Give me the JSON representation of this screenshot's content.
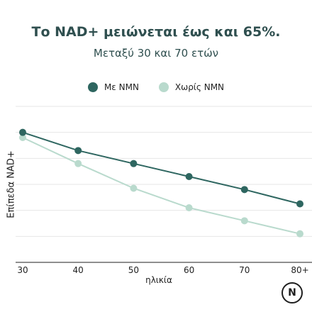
{
  "chart_data": {
    "type": "line",
    "title": "Το NAD+ μειώνεται έως και 65%.",
    "subtitle": "Μεταξύ 30 και 70 ετών",
    "xlabel": "ηλικία",
    "ylabel": "Επίπεδα NAD+",
    "categories": [
      "30",
      "40",
      "50",
      "60",
      "70",
      "80+"
    ],
    "series": [
      {
        "name": "Με NMN",
        "color": "#2e6660",
        "values": [
          100,
          86,
          76,
          66,
          56,
          45
        ]
      },
      {
        "name": "Χωρίς NMN",
        "color": "#b9dacd",
        "values": [
          96,
          76,
          57,
          42,
          32,
          22
        ]
      }
    ],
    "ylim": [
      0,
      120
    ],
    "grid": true,
    "legend_position": "top"
  },
  "logo": {
    "letter": "N"
  }
}
